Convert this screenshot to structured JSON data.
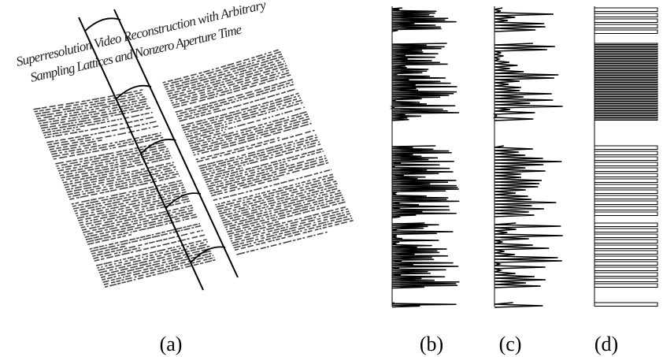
{
  "figure": {
    "document_title": [
      "Superresolution Video Reconstruction with Arbitrary",
      "Sampling Lattices and Nonzero Aperture Time"
    ],
    "captions": [
      "(a)",
      "(b)",
      "(c)",
      "(d)"
    ]
  }
}
